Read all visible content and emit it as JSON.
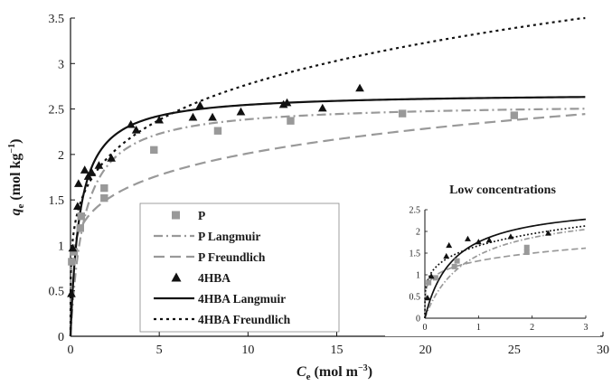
{
  "chart_data": {
    "type": "scatter",
    "xlabel": {
      "main": "C",
      "sub": "e",
      "unit": " (mol m",
      "sup": "−3",
      "close": ")"
    },
    "ylabel": {
      "main": "q",
      "sub": "e",
      "unit": " (mol kg",
      "sup": "−1",
      "close": ")"
    },
    "xlim": [
      0,
      30
    ],
    "ylim": [
      0,
      3.5
    ],
    "xticks": [
      0,
      5,
      10,
      15,
      20,
      25,
      30
    ],
    "yticks": [
      0,
      0.5,
      1,
      1.5,
      2,
      2.5,
      3,
      3.5
    ],
    "grid": false,
    "legend_position": "lower-left",
    "colors": {
      "p": "#999999",
      "hba": "#111111",
      "p_line": "#999999",
      "hba_line": "#111111"
    },
    "series": [
      {
        "name": "P",
        "kind": "points",
        "marker": "square",
        "x": [
          0.07,
          0.2,
          0.55,
          0.6,
          1.9,
          1.9,
          4.7,
          8.3,
          12.4,
          18.7,
          25.0
        ],
        "y": [
          0.82,
          0.93,
          1.19,
          1.32,
          1.52,
          1.63,
          2.05,
          2.26,
          2.37,
          2.45,
          2.43
        ]
      },
      {
        "name": "P Langmuir",
        "kind": "curve",
        "model": "langmuir",
        "params": {
          "qmax": 2.57,
          "b": 1.3
        },
        "dash": "10,4,2,4"
      },
      {
        "name": "P Freundlich",
        "kind": "curve",
        "model": "freundlich",
        "params": {
          "kf": 1.32,
          "n": 0.183
        },
        "dash": "12,6"
      },
      {
        "name": "4HBA",
        "kind": "points",
        "marker": "triangle",
        "x": [
          0.05,
          0.12,
          0.4,
          0.45,
          0.8,
          1.0,
          1.2,
          1.6,
          2.3,
          3.4,
          3.7,
          5.0,
          6.9,
          7.3,
          8.0,
          9.6,
          12.0,
          12.2,
          14.2,
          16.3
        ],
        "y": [
          0.47,
          0.97,
          1.43,
          1.68,
          1.83,
          1.76,
          1.8,
          1.88,
          1.96,
          2.33,
          2.27,
          2.38,
          2.41,
          2.54,
          2.41,
          2.47,
          2.55,
          2.57,
          2.51,
          2.73
        ]
      },
      {
        "name": "4HBA Langmuir",
        "kind": "curve",
        "model": "langmuir",
        "params": {
          "qmax": 2.68,
          "b": 1.9
        },
        "dash": ""
      },
      {
        "name": "4HBA Freundlich",
        "kind": "curve",
        "model": "freundlich",
        "params": {
          "kf": 1.67,
          "n": 0.22
        },
        "dash": "3,4"
      }
    ],
    "inset": {
      "title": "Low concentrations",
      "xlim": [
        0,
        3
      ],
      "ylim": [
        0,
        2.5
      ],
      "xticks": [
        0,
        1,
        2,
        3
      ],
      "yticks": [
        0,
        0.5,
        1,
        1.5,
        2,
        2.5
      ]
    }
  }
}
